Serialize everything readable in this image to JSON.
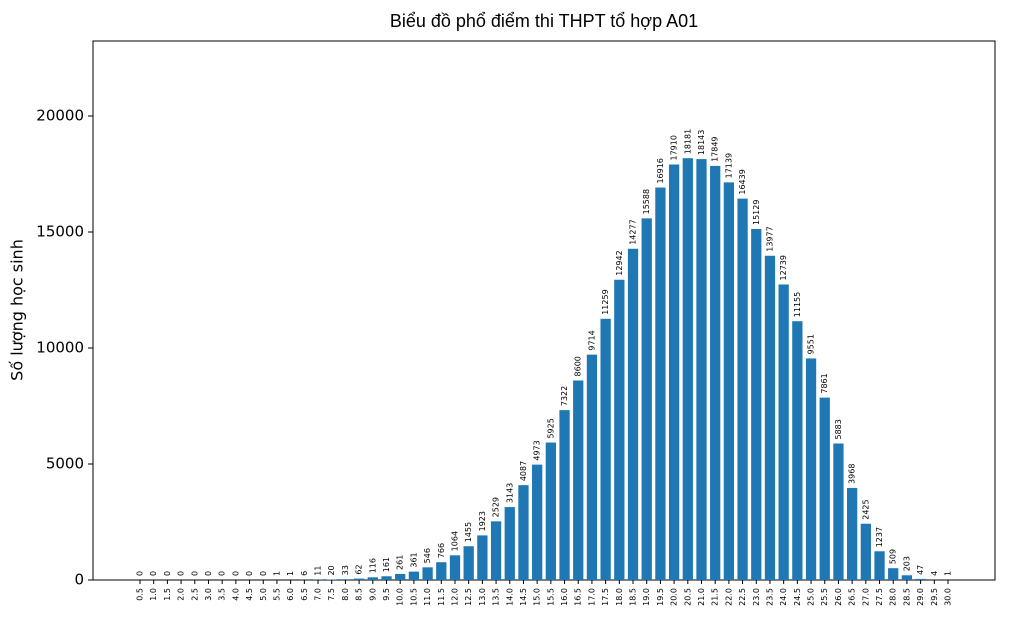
{
  "chart_data": {
    "type": "bar",
    "title": "Biểu đồ phổ điểm thi THPT tổ hợp A01",
    "y_label": "Số lượng học sinh",
    "categories": [
      "0.5",
      "1.0",
      "1.5",
      "2.0",
      "2.5",
      "3.0",
      "3.5",
      "4.0",
      "4.5",
      "5.0",
      "5.5",
      "6.0",
      "6.5",
      "7.0",
      "7.5",
      "8.0",
      "8.5",
      "9.0",
      "9.5",
      "10.0",
      "10.5",
      "11.0",
      "11.5",
      "12.0",
      "12.5",
      "13.0",
      "13.5",
      "14.0",
      "14.5",
      "15.0",
      "15.5",
      "16.0",
      "16.5",
      "17.0",
      "17.5",
      "18.0",
      "18.5",
      "19.0",
      "19.5",
      "20.0",
      "20.5",
      "21.0",
      "21.5",
      "22.0",
      "22.5",
      "23.0",
      "23.5",
      "24.0",
      "24.5",
      "25.0",
      "25.5",
      "26.0",
      "26.5",
      "27.0",
      "27.5",
      "28.0",
      "28.5",
      "29.0",
      "29.5",
      "30.0"
    ],
    "values": [
      0,
      0,
      0,
      0,
      0,
      0,
      0,
      0,
      0,
      0,
      1,
      1,
      6,
      11,
      20,
      33,
      62,
      116,
      161,
      261,
      361,
      546,
      766,
      1064,
      1455,
      1923,
      2529,
      3143,
      4087,
      4973,
      5925,
      7322,
      8600,
      9714,
      11259,
      12942,
      14277,
      15588,
      16916,
      17910,
      18181,
      18143,
      17849,
      17139,
      16439,
      15129,
      13977,
      12739,
      11155,
      9551,
      7861,
      5883,
      3968,
      2425,
      1237,
      509,
      203,
      47,
      4,
      1
    ],
    "color": "#1f77b4",
    "ylim": [
      0,
      23233
    ],
    "yticks": [
      0,
      5000,
      10000,
      15000,
      20000
    ],
    "grid": false
  }
}
